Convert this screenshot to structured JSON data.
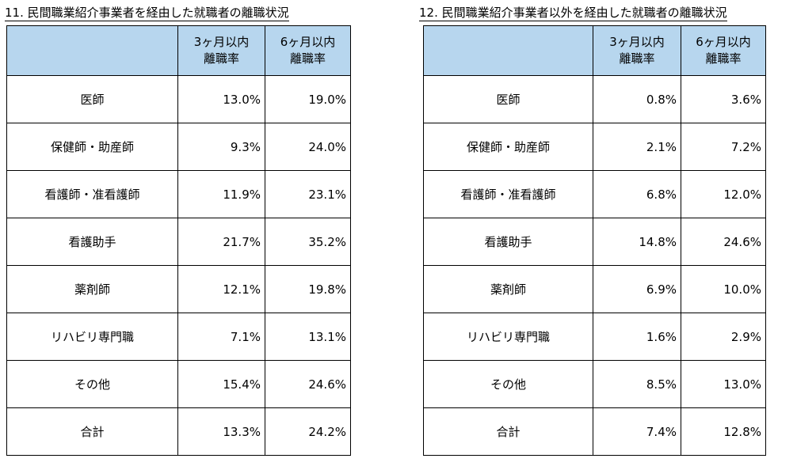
{
  "left": {
    "title": "11. 民間職業紹介事業者を経由した就職者の離職状況",
    "header": {
      "col_blank": "",
      "col1_line1": "3ヶ月以内",
      "col1_line2": "離職率",
      "col2_line1": "6ヶ月以内",
      "col2_line2": "離職率"
    },
    "rows": [
      {
        "label": "医師",
        "m3": "13.0%",
        "m6": "19.0%"
      },
      {
        "label": "保健師・助産師",
        "m3": "9.3%",
        "m6": "24.0%"
      },
      {
        "label": "看護師・准看護師",
        "m3": "11.9%",
        "m6": "23.1%"
      },
      {
        "label": "看護助手",
        "m3": "21.7%",
        "m6": "35.2%"
      },
      {
        "label": "薬剤師",
        "m3": "12.1%",
        "m6": "19.8%"
      },
      {
        "label": "リハビリ専門職",
        "m3": "7.1%",
        "m6": "13.1%"
      },
      {
        "label": "その他",
        "m3": "15.4%",
        "m6": "24.6%"
      },
      {
        "label": "合計",
        "m3": "13.3%",
        "m6": "24.2%"
      }
    ]
  },
  "right": {
    "title": "12. 民間職業紹介事業者以外を経由した就職者の離職状況",
    "header": {
      "col_blank": "",
      "col1_line1": "3ヶ月以内",
      "col1_line2": "離職率",
      "col2_line1": "6ヶ月以内",
      "col2_line2": "離職率"
    },
    "rows": [
      {
        "label": "医師",
        "m3": "0.8%",
        "m6": "3.6%"
      },
      {
        "label": "保健師・助産師",
        "m3": "2.1%",
        "m6": "7.2%"
      },
      {
        "label": "看護師・准看護師",
        "m3": "6.8%",
        "m6": "12.0%"
      },
      {
        "label": "看護助手",
        "m3": "14.8%",
        "m6": "24.6%"
      },
      {
        "label": "薬剤師",
        "m3": "6.9%",
        "m6": "10.0%"
      },
      {
        "label": "リハビリ専門職",
        "m3": "1.6%",
        "m6": "2.9%"
      },
      {
        "label": "その他",
        "m3": "8.5%",
        "m6": "13.0%"
      },
      {
        "label": "合計",
        "m3": "7.4%",
        "m6": "12.8%"
      }
    ]
  },
  "colors": {
    "header_bg": "#b7d6ee",
    "border": "#000000"
  }
}
